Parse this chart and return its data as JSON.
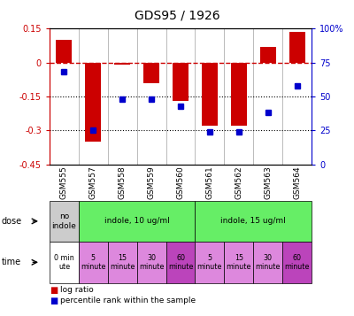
{
  "title": "GDS95 / 1926",
  "samples": [
    "GSM555",
    "GSM557",
    "GSM558",
    "GSM559",
    "GSM560",
    "GSM561",
    "GSM562",
    "GSM563",
    "GSM564"
  ],
  "log_ratio": [
    0.1,
    -0.35,
    -0.01,
    -0.09,
    -0.17,
    -0.28,
    -0.28,
    0.07,
    0.135
  ],
  "percentile_rank": [
    68,
    25,
    48,
    48,
    43,
    24,
    24,
    38,
    58
  ],
  "ylim_left": [
    -0.45,
    0.15
  ],
  "ylim_right": [
    0,
    100
  ],
  "yticks_left": [
    0.15,
    0,
    -0.15,
    -0.3,
    -0.45
  ],
  "yticks_right": [
    100,
    75,
    50,
    25,
    0
  ],
  "bar_color": "#cc0000",
  "dot_color": "#0000cc",
  "dose_row": [
    {
      "label": "no\nindole",
      "color": "#cccccc",
      "span": [
        0,
        1
      ]
    },
    {
      "label": "indole, 10 ug/ml",
      "color": "#66ee66",
      "span": [
        1,
        5
      ]
    },
    {
      "label": "indole, 15 ug/ml",
      "color": "#66ee66",
      "span": [
        5,
        9
      ]
    }
  ],
  "time_row": [
    {
      "label": "0 min\nute",
      "color": "#ffffff",
      "span": [
        0,
        1
      ]
    },
    {
      "label": "5\nminute",
      "color": "#dd88dd",
      "span": [
        1,
        2
      ]
    },
    {
      "label": "15\nminute",
      "color": "#dd88dd",
      "span": [
        2,
        3
      ]
    },
    {
      "label": "30\nminute",
      "color": "#dd88dd",
      "span": [
        3,
        4
      ]
    },
    {
      "label": "60\nminute",
      "color": "#bb44bb",
      "span": [
        4,
        5
      ]
    },
    {
      "label": "5\nminute",
      "color": "#dd88dd",
      "span": [
        5,
        6
      ]
    },
    {
      "label": "15\nminute",
      "color": "#dd88dd",
      "span": [
        6,
        7
      ]
    },
    {
      "label": "30\nminute",
      "color": "#dd88dd",
      "span": [
        7,
        8
      ]
    },
    {
      "label": "60\nminute",
      "color": "#bb44bb",
      "span": [
        8,
        9
      ]
    }
  ],
  "left_axis_color": "#cc0000",
  "right_axis_color": "#0000cc",
  "background_color": "#ffffff"
}
